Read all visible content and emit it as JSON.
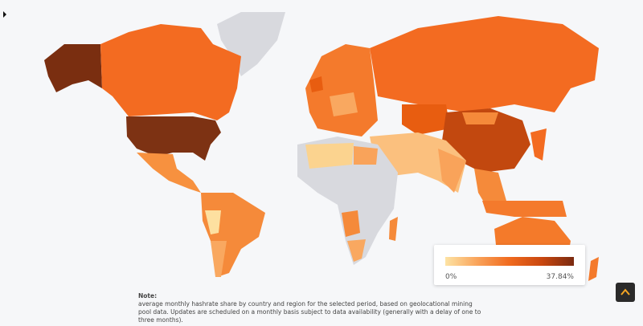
{
  "legend": {
    "min": "0%",
    "max": "37.84%"
  },
  "note": {
    "title": "Note:",
    "text": "average monthly hashrate share by country and region for the selected period, based on geolocational mining pool data. Updates are scheduled on a monthly basis subject to data availability (generally with a delay of one to three months)."
  }
}
